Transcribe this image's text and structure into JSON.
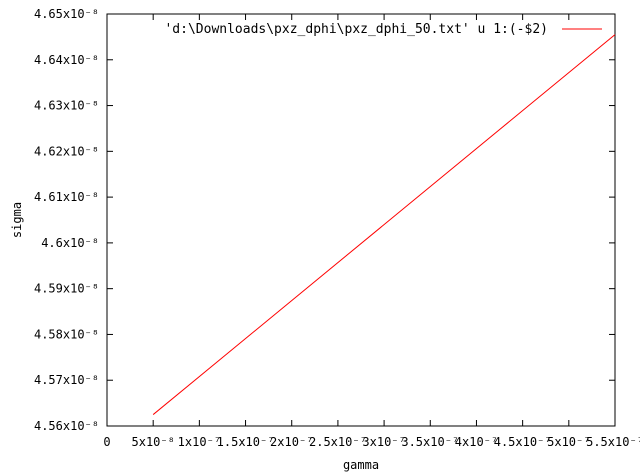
{
  "chart_data": {
    "type": "line",
    "xlabel": "gamma",
    "ylabel": "sigma",
    "x_ticks": [
      {
        "value": 0,
        "label": "0"
      },
      {
        "value": 5e-08,
        "label": "5x10⁻⁸"
      },
      {
        "value": 1e-07,
        "label": "1x10⁻⁷"
      },
      {
        "value": 1.5e-07,
        "label": "1.5x10⁻⁷"
      },
      {
        "value": 2e-07,
        "label": "2x10⁻⁷"
      },
      {
        "value": 2.5e-07,
        "label": "2.5x10⁻⁷"
      },
      {
        "value": 3e-07,
        "label": "3x10⁻⁷"
      },
      {
        "value": 3.5e-07,
        "label": "3.5x10⁻⁷"
      },
      {
        "value": 4e-07,
        "label": "4x10⁻⁷"
      },
      {
        "value": 4.5e-07,
        "label": "4.5x10⁻⁷"
      },
      {
        "value": 5e-07,
        "label": "5x10⁻⁷"
      },
      {
        "value": 5.5e-07,
        "label": "5.5x10⁻⁷"
      }
    ],
    "y_ticks": [
      {
        "value": 4.56e-08,
        "label": "4.56x10⁻⁸"
      },
      {
        "value": 4.57e-08,
        "label": "4.57x10⁻⁸"
      },
      {
        "value": 4.58e-08,
        "label": "4.58x10⁻⁸"
      },
      {
        "value": 4.59e-08,
        "label": "4.59x10⁻⁸"
      },
      {
        "value": 4.6e-08,
        "label": "4.6x10⁻⁸"
      },
      {
        "value": 4.61e-08,
        "label": "4.61x10⁻⁸"
      },
      {
        "value": 4.62e-08,
        "label": "4.62x10⁻⁸"
      },
      {
        "value": 4.63e-08,
        "label": "4.63x10⁻⁸"
      },
      {
        "value": 4.64e-08,
        "label": "4.64x10⁻⁸"
      },
      {
        "value": 4.65e-08,
        "label": "4.65x10⁻⁸"
      }
    ],
    "xlim": [
      0,
      5.5e-07
    ],
    "ylim": [
      4.56e-08,
      4.65e-08
    ],
    "grid": false,
    "legend_position": "top-right",
    "series": [
      {
        "name": "'d:\\Downloads\\pxz_dphi\\pxz_dphi_50.txt' u 1:(-$2)",
        "color": "#ff0000",
        "x": [
          5e-08,
          5.5e-07
        ],
        "y": [
          4.5625e-08,
          4.6455e-08
        ]
      }
    ]
  }
}
